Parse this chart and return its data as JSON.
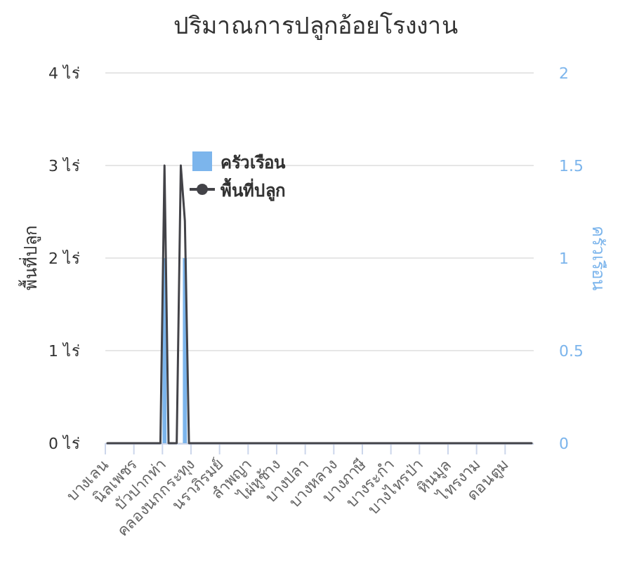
{
  "chart_data": {
    "type": "bar",
    "title": "ปริมาณการปลูกอ้อยโรงงาน",
    "ylabel": "พื้นที่ปลูก",
    "y2label": "ครัวเรือน",
    "categories": [
      "บางเลน",
      null,
      null,
      null,
      null,
      null,
      null,
      "นิลเพชร",
      null,
      null,
      null,
      null,
      null,
      null,
      "บัวปากท่า",
      null,
      null,
      null,
      null,
      null,
      null,
      "คลองนกกระทุง",
      null,
      null,
      null,
      null,
      null,
      null,
      "นราภิรมย์",
      null,
      null,
      null,
      null,
      null,
      null,
      "ลำพญา",
      null,
      null,
      null,
      null,
      null,
      null,
      "ไผ่หูช้าง",
      null,
      null,
      null,
      null,
      null,
      null,
      "บางปลา",
      null,
      null,
      null,
      null,
      null,
      null,
      "บางหลวง",
      null,
      null,
      null,
      null,
      null,
      null,
      "บางภาษี",
      null,
      null,
      null,
      null,
      null,
      null,
      "บางระกำ",
      null,
      null,
      null,
      null,
      null,
      null,
      "บางไทรป่า",
      null,
      null,
      null,
      null,
      null,
      null,
      "หินมูล",
      null,
      null,
      null,
      null,
      null,
      null,
      "ไทรงาม",
      null,
      null,
      null,
      null,
      null,
      null,
      "ดอนตูม",
      null,
      null,
      null,
      null,
      null,
      null
    ],
    "series": [
      {
        "name": "ครัวเรือน",
        "axis": "y2",
        "color": "#7cb5ec",
        "values": [
          0,
          0,
          0,
          0,
          0,
          0,
          0,
          0,
          0,
          0,
          0,
          0,
          0,
          0,
          1,
          0,
          0,
          0,
          0,
          1,
          0,
          0,
          0,
          0,
          0,
          0,
          0,
          0,
          0,
          0,
          0,
          0,
          0,
          0,
          0,
          0,
          0,
          0,
          0,
          0,
          0,
          0,
          0,
          0,
          0,
          0,
          0,
          0,
          0,
          0,
          0,
          0,
          0,
          0,
          0,
          0,
          0,
          0,
          0,
          0,
          0,
          0,
          0,
          0,
          0,
          0,
          0,
          0,
          0,
          0,
          0,
          0,
          0,
          0,
          0,
          0,
          0,
          0,
          0,
          0,
          0,
          0,
          0,
          0,
          0,
          0,
          0,
          0,
          0,
          0,
          0,
          0,
          0,
          0,
          0,
          0,
          0,
          0,
          0,
          0,
          0,
          0,
          0,
          0,
          0
        ]
      },
      {
        "name": "พื้นที่ปลูก",
        "type": "line",
        "color": "#434348",
        "values": [
          0,
          0,
          0,
          0,
          0,
          0,
          0,
          0,
          0,
          0,
          0,
          0,
          0,
          0,
          3,
          0,
          0,
          0,
          3,
          2.4,
          0,
          0,
          0,
          0,
          0,
          0,
          0,
          0,
          0,
          0,
          0,
          0,
          0,
          0,
          0,
          0,
          0,
          0,
          0,
          0,
          0,
          0,
          0,
          0,
          0,
          0,
          0,
          0,
          0,
          0,
          0,
          0,
          0,
          0,
          0,
          0,
          0,
          0,
          0,
          0,
          0,
          0,
          0,
          0,
          0,
          0,
          0,
          0,
          0,
          0,
          0,
          0,
          0,
          0,
          0,
          0,
          0,
          0,
          0,
          0,
          0,
          0,
          0,
          0,
          0,
          0,
          0,
          0,
          0,
          0,
          0,
          0,
          0,
          0,
          0,
          0,
          0,
          0,
          0,
          0,
          0,
          0,
          0,
          0,
          0
        ]
      }
    ],
    "ylim": [
      0,
      4
    ],
    "yticks": [
      {
        "value": 0,
        "label": "0 ไร่"
      },
      {
        "value": 1,
        "label": "1 ไร่"
      },
      {
        "value": 2,
        "label": "2 ไร่"
      },
      {
        "value": 3,
        "label": "3 ไร่"
      },
      {
        "value": 4,
        "label": "4 ไร่"
      }
    ],
    "y2lim": [
      0,
      2
    ],
    "y2ticks": [
      0,
      0.5,
      1,
      1.5,
      2
    ],
    "grid": "y",
    "legend": "top left"
  }
}
